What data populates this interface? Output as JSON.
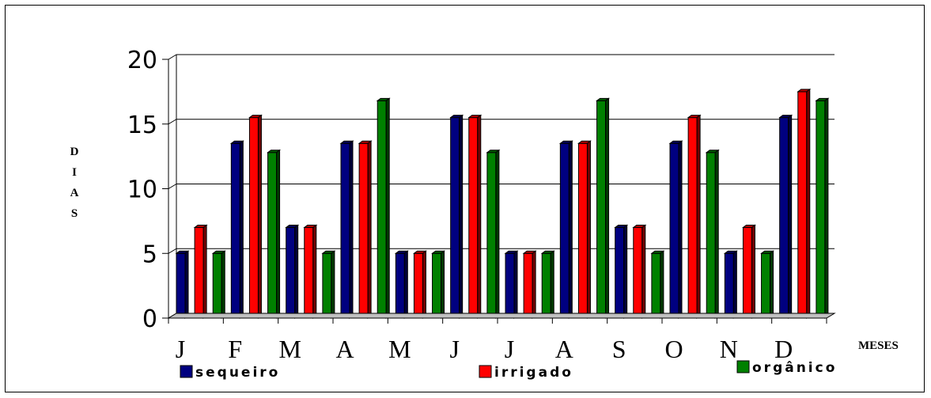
{
  "chart_data": {
    "type": "bar",
    "categories": [
      "J",
      "F",
      "M",
      "A",
      "M",
      "J",
      "J",
      "A",
      "S",
      "O",
      "N",
      "D"
    ],
    "series": [
      {
        "name": "sequeiro",
        "color": "#000080",
        "values": [
          5,
          13.5,
          7,
          13.5,
          5,
          15.5,
          5,
          13.5,
          7,
          13.5,
          5,
          15.5
        ]
      },
      {
        "name": "irrigado",
        "color": "#ff0000",
        "values": [
          7,
          15.5,
          7,
          13.5,
          5,
          15.5,
          5,
          13.5,
          7,
          15.5,
          7,
          17.5
        ]
      },
      {
        "name": "orgânico",
        "color": "#008000",
        "values": [
          5,
          12.8,
          5,
          16.8,
          5,
          12.8,
          5,
          16.8,
          5,
          12.8,
          5,
          16.8
        ]
      }
    ],
    "ylim": [
      0,
      20
    ],
    "yticks": [
      "0",
      "5",
      "10",
      "15",
      "20"
    ],
    "ylabel": "DIAS",
    "ylabel_letters": [
      "D",
      "I",
      "A",
      "S"
    ],
    "xlabel": "MESES",
    "grid": true,
    "legend_position": "bottom"
  }
}
